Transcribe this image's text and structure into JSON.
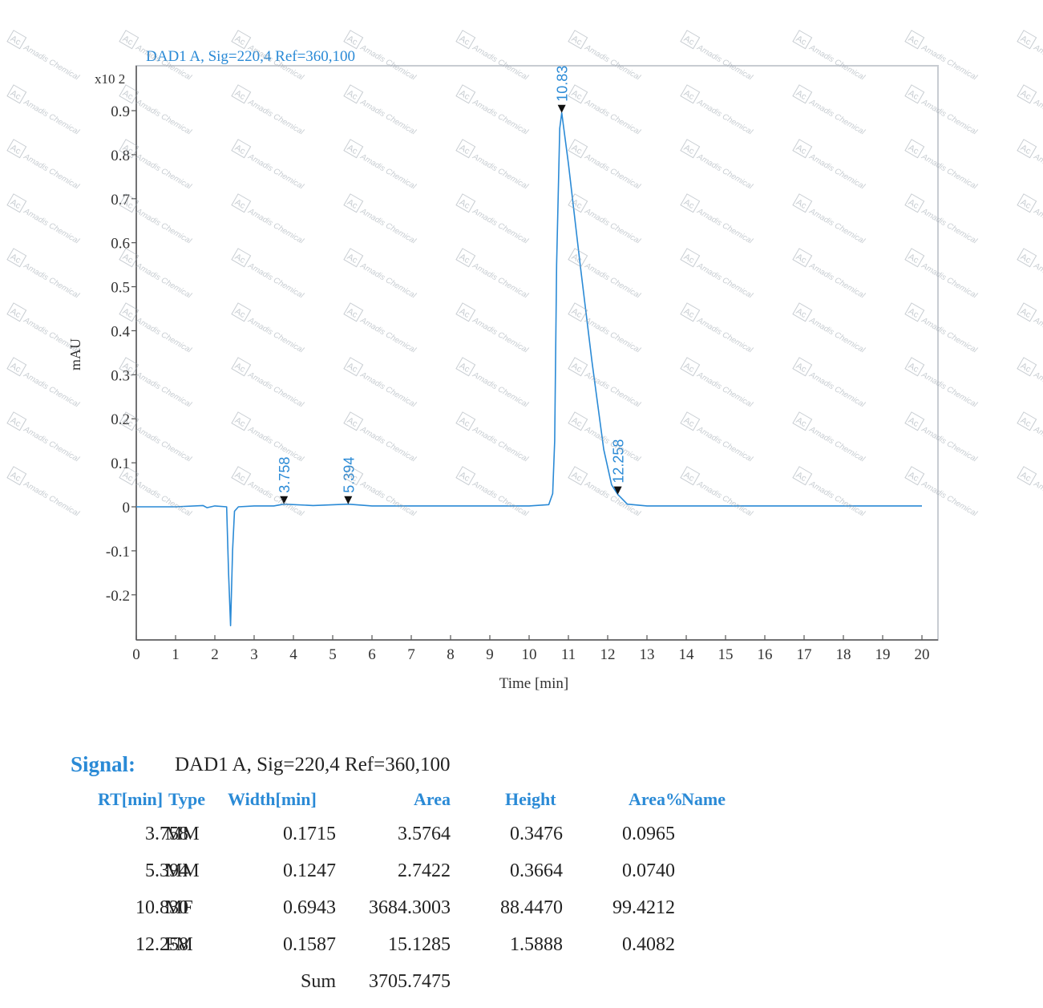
{
  "chart_data": {
    "type": "line",
    "title": "DAD1 A, Sig=220,4 Ref=360,100",
    "xlabel": "Time [min]",
    "ylabel": "mAU",
    "y_multiplier": "x10 2",
    "xlim": [
      0,
      20
    ],
    "ylim": [
      -0.27,
      1.0
    ],
    "x_ticks": [
      "0",
      "1",
      "2",
      "3",
      "4",
      "5",
      "6",
      "7",
      "8",
      "9",
      "10",
      "11",
      "12",
      "13",
      "14",
      "15",
      "16",
      "17",
      "18",
      "19",
      "20"
    ],
    "y_ticks": [
      "0.9",
      "0.8",
      "0.7",
      "0.6",
      "0.5",
      "0.4",
      "0.3",
      "0.2",
      "0.1",
      "0",
      "-0.1",
      "-0.2"
    ],
    "series": [
      {
        "color": "#2a8ad6",
        "x": [
          0,
          1.0,
          1.7,
          1.8,
          2.0,
          2.3,
          2.35,
          2.4,
          2.45,
          2.5,
          2.6,
          3.0,
          3.5,
          3.758,
          4.5,
          5.394,
          6.0,
          8.0,
          10.0,
          10.5,
          10.6,
          10.65,
          10.7,
          10.78,
          10.83,
          11.0,
          11.3,
          11.6,
          11.9,
          12.1,
          12.258,
          12.5,
          13.0,
          15.0,
          18.0,
          20.0
        ],
        "y": [
          0,
          0,
          0.003,
          -0.002,
          0.002,
          0,
          -0.15,
          -0.27,
          -0.1,
          -0.01,
          0,
          0.002,
          0.002,
          0.006,
          0.003,
          0.006,
          0.002,
          0.002,
          0.002,
          0.005,
          0.03,
          0.15,
          0.55,
          0.86,
          0.895,
          0.78,
          0.55,
          0.33,
          0.13,
          0.05,
          0.028,
          0.006,
          0.002,
          0.002,
          0.002,
          0.002
        ]
      }
    ],
    "peak_labels": [
      {
        "x": 3.758,
        "y": 0.006,
        "label": "3.758"
      },
      {
        "x": 5.394,
        "y": 0.006,
        "label": "5.394"
      },
      {
        "x": 10.83,
        "y": 0.895,
        "label": "10.83"
      },
      {
        "x": 12.258,
        "y": 0.028,
        "label": "12.258"
      }
    ],
    "grid": false
  },
  "watermark": {
    "logo_text": "Ac",
    "brand_text": "Amadis Chemical",
    "color": "#9aa4ad"
  },
  "signal": {
    "title": "Signal:",
    "description": "DAD1 A, Sig=220,4 Ref=360,100"
  },
  "table": {
    "headers": [
      "RT[min]",
      "Type",
      "Width[min]",
      "Area",
      "Height",
      "Area%",
      "Name"
    ],
    "rows": [
      [
        "3.758",
        "MM",
        "0.1715",
        "3.5764",
        "0.3476",
        "0.0965"
      ],
      [
        "5.394",
        "MM",
        "0.1247",
        "2.7422",
        "0.3664",
        "0.0740"
      ],
      [
        "10.830",
        "MF",
        "0.6943",
        "3684.3003",
        "88.4470",
        "99.4212"
      ],
      [
        "12.258",
        "FM",
        "0.1587",
        "15.1285",
        "1.5888",
        "0.4082"
      ]
    ],
    "sum_label": "Sum",
    "sum_value": "3705.7475"
  }
}
